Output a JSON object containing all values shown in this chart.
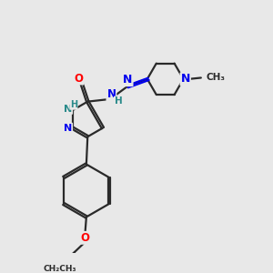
{
  "bg_color": "#e8e8e8",
  "bond_color": "#2a2a2a",
  "N_color": "#0000ee",
  "O_color": "#ff0000",
  "H_color": "#2a8a8a",
  "fig_w": 3.0,
  "fig_h": 3.0,
  "dpi": 100,
  "xlim": [
    0,
    10
  ],
  "ylim": [
    0,
    10
  ]
}
